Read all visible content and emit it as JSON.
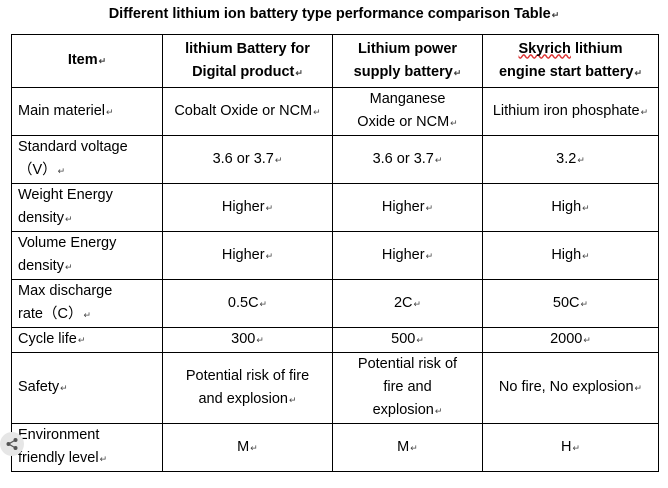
{
  "title": "Different lithium ion battery type performance comparison Table",
  "header": {
    "item": "Item",
    "col1": [
      "lithium Battery for",
      "Digital product"
    ],
    "col2": [
      "Lithium power",
      "supply battery"
    ],
    "col3_brand": "Skyrich",
    "col3_rest": " lithium",
    "col3_line2": "engine start battery"
  },
  "rows": [
    {
      "label": [
        "Main materiel"
      ],
      "v1": [
        "Cobalt Oxide or NCM"
      ],
      "v2": [
        "Manganese",
        "Oxide or NCM"
      ],
      "v3": [
        "Lithium iron phosphate"
      ]
    },
    {
      "label": [
        "Standard voltage",
        "（V）"
      ],
      "v1": [
        "3.6 or 3.7"
      ],
      "v2": [
        "3.6 or 3.7"
      ],
      "v3": [
        "3.2"
      ]
    },
    {
      "label": [
        "Weight Energy",
        "density"
      ],
      "v1": [
        "Higher"
      ],
      "v2": [
        "Higher"
      ],
      "v3": [
        "High"
      ]
    },
    {
      "label": [
        "Volume Energy",
        "density"
      ],
      "v1": [
        "Higher"
      ],
      "v2": [
        "Higher"
      ],
      "v3": [
        "High"
      ]
    },
    {
      "label": [
        "Max discharge",
        "rate（C）"
      ],
      "v1": [
        "0.5C"
      ],
      "v2": [
        "2C"
      ],
      "v3": [
        "50C"
      ]
    },
    {
      "label": [
        "Cycle life"
      ],
      "v1": [
        "300"
      ],
      "v2": [
        "500"
      ],
      "v3": [
        "2000"
      ]
    },
    {
      "label": [
        "Safety"
      ],
      "v1": [
        "Potential risk of fire",
        "and explosion"
      ],
      "v2": [
        "Potential risk of",
        "fire and",
        "explosion"
      ],
      "v3": [
        "No fire, No explosion"
      ]
    },
    {
      "label": [
        "Environment",
        "friendly level"
      ],
      "v1": [
        "M"
      ],
      "v2": [
        "M"
      ],
      "v3": [
        "H"
      ]
    }
  ],
  "paragraph_mark": "↵"
}
